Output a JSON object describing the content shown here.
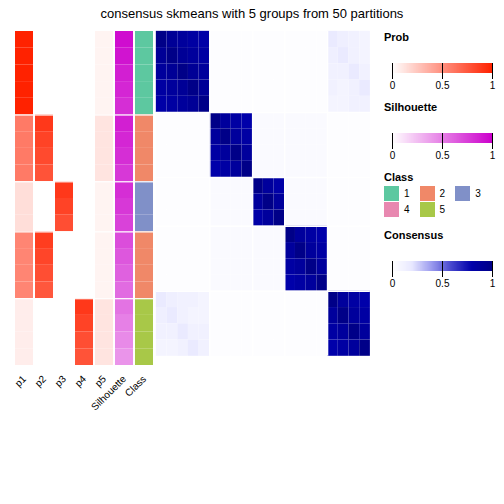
{
  "chart_data": {
    "type": "heatmap",
    "title": "consensus skmeans with 5 groups from 50 partitions",
    "group_boundaries": [
      0,
      5,
      9,
      12,
      16,
      20
    ],
    "annotations": [
      {
        "name": "p1",
        "key": "Prob",
        "values": [
          1.0,
          1.0,
          1.0,
          1.0,
          1.0,
          0.6,
          0.6,
          0.6,
          0.6,
          0.15,
          0.15,
          0.15,
          0.55,
          0.55,
          0.55,
          0.55,
          0.08,
          0.08,
          0.08,
          0.08
        ]
      },
      {
        "name": "p2",
        "key": "Prob",
        "values": [
          0.0,
          0.0,
          0.0,
          0.0,
          0.0,
          0.9,
          0.85,
          0.82,
          0.78,
          0.0,
          0.0,
          0.0,
          0.88,
          0.84,
          0.8,
          0.76,
          0.0,
          0.0,
          0.0,
          0.0
        ]
      },
      {
        "name": "p3",
        "key": "Prob",
        "values": [
          0.0,
          0.0,
          0.0,
          0.0,
          0.0,
          0.0,
          0.0,
          0.0,
          0.0,
          0.9,
          0.85,
          0.8,
          0.0,
          0.0,
          0.0,
          0.0,
          0.0,
          0.0,
          0.0,
          0.0
        ]
      },
      {
        "name": "p4",
        "key": "Prob",
        "values": [
          0.0,
          0.0,
          0.0,
          0.0,
          0.0,
          0.0,
          0.0,
          0.0,
          0.0,
          0.0,
          0.0,
          0.0,
          0.0,
          0.0,
          0.0,
          0.0,
          0.9,
          0.85,
          0.8,
          0.78
        ]
      },
      {
        "name": "p5",
        "key": "Prob",
        "values": [
          0.05,
          0.05,
          0.05,
          0.05,
          0.05,
          0.12,
          0.12,
          0.12,
          0.12,
          0.05,
          0.05,
          0.05,
          0.05,
          0.05,
          0.05,
          0.05,
          0.12,
          0.12,
          0.12,
          0.12
        ]
      },
      {
        "name": "Silhouette",
        "key": "Silhouette",
        "values": [
          0.95,
          0.92,
          0.88,
          0.85,
          0.82,
          0.88,
          0.85,
          0.82,
          0.78,
          0.82,
          0.78,
          0.74,
          0.7,
          0.66,
          0.62,
          0.58,
          0.55,
          0.5,
          0.46,
          0.42
        ]
      },
      {
        "name": "Class",
        "key": "Class",
        "values": [
          1,
          1,
          1,
          1,
          1,
          2,
          2,
          2,
          2,
          3,
          3,
          3,
          2,
          2,
          2,
          2,
          5,
          5,
          5,
          5
        ]
      }
    ],
    "cells_key": "Consensus",
    "cells": [
      [
        1.0,
        0.92,
        0.88,
        0.85,
        0.82,
        0.02,
        0.02,
        0.02,
        0.02,
        0.02,
        0.02,
        0.02,
        0.02,
        0.02,
        0.02,
        0.02,
        0.18,
        0.14,
        0.12,
        0.1
      ],
      [
        0.92,
        1.0,
        0.92,
        0.88,
        0.85,
        0.02,
        0.02,
        0.02,
        0.02,
        0.02,
        0.02,
        0.02,
        0.02,
        0.02,
        0.02,
        0.02,
        0.14,
        0.18,
        0.12,
        0.1
      ],
      [
        0.88,
        0.92,
        1.0,
        0.92,
        0.88,
        0.02,
        0.02,
        0.02,
        0.02,
        0.02,
        0.02,
        0.02,
        0.02,
        0.02,
        0.02,
        0.02,
        0.12,
        0.12,
        0.18,
        0.12
      ],
      [
        0.85,
        0.88,
        0.92,
        1.0,
        0.92,
        0.02,
        0.02,
        0.02,
        0.02,
        0.02,
        0.02,
        0.02,
        0.02,
        0.02,
        0.02,
        0.02,
        0.12,
        0.1,
        0.12,
        0.18
      ],
      [
        0.82,
        0.85,
        0.88,
        0.92,
        1.0,
        0.02,
        0.02,
        0.02,
        0.02,
        0.02,
        0.02,
        0.02,
        0.02,
        0.02,
        0.02,
        0.02,
        0.1,
        0.1,
        0.12,
        0.12
      ],
      [
        0.02,
        0.02,
        0.02,
        0.02,
        0.02,
        1.0,
        0.88,
        0.84,
        0.8,
        0.04,
        0.04,
        0.04,
        0.04,
        0.04,
        0.04,
        0.04,
        0.02,
        0.02,
        0.02,
        0.02
      ],
      [
        0.02,
        0.02,
        0.02,
        0.02,
        0.02,
        0.88,
        1.0,
        0.88,
        0.84,
        0.04,
        0.04,
        0.04,
        0.04,
        0.04,
        0.04,
        0.04,
        0.02,
        0.02,
        0.02,
        0.02
      ],
      [
        0.02,
        0.02,
        0.02,
        0.02,
        0.02,
        0.84,
        0.88,
        1.0,
        0.88,
        0.04,
        0.04,
        0.04,
        0.04,
        0.04,
        0.04,
        0.04,
        0.02,
        0.02,
        0.02,
        0.02
      ],
      [
        0.02,
        0.02,
        0.02,
        0.02,
        0.02,
        0.8,
        0.84,
        0.88,
        1.0,
        0.04,
        0.04,
        0.04,
        0.04,
        0.04,
        0.04,
        0.04,
        0.02,
        0.02,
        0.02,
        0.02
      ],
      [
        0.02,
        0.02,
        0.02,
        0.02,
        0.02,
        0.04,
        0.04,
        0.04,
        0.04,
        1.0,
        0.88,
        0.82,
        0.04,
        0.04,
        0.04,
        0.04,
        0.02,
        0.02,
        0.02,
        0.02
      ],
      [
        0.02,
        0.02,
        0.02,
        0.02,
        0.02,
        0.04,
        0.04,
        0.04,
        0.04,
        0.88,
        1.0,
        0.88,
        0.04,
        0.04,
        0.04,
        0.04,
        0.02,
        0.02,
        0.02,
        0.02
      ],
      [
        0.02,
        0.02,
        0.02,
        0.02,
        0.02,
        0.04,
        0.04,
        0.04,
        0.04,
        0.82,
        0.88,
        1.0,
        0.04,
        0.04,
        0.04,
        0.04,
        0.02,
        0.02,
        0.02,
        0.02
      ],
      [
        0.02,
        0.02,
        0.02,
        0.02,
        0.02,
        0.04,
        0.04,
        0.04,
        0.04,
        0.04,
        0.04,
        0.04,
        1.0,
        0.88,
        0.84,
        0.8,
        0.02,
        0.02,
        0.02,
        0.02
      ],
      [
        0.02,
        0.02,
        0.02,
        0.02,
        0.02,
        0.04,
        0.04,
        0.04,
        0.04,
        0.04,
        0.04,
        0.04,
        0.88,
        1.0,
        0.88,
        0.84,
        0.02,
        0.02,
        0.02,
        0.02
      ],
      [
        0.02,
        0.02,
        0.02,
        0.02,
        0.02,
        0.04,
        0.04,
        0.04,
        0.04,
        0.04,
        0.04,
        0.04,
        0.84,
        0.88,
        1.0,
        0.88,
        0.02,
        0.02,
        0.02,
        0.02
      ],
      [
        0.02,
        0.02,
        0.02,
        0.02,
        0.02,
        0.04,
        0.04,
        0.04,
        0.04,
        0.04,
        0.04,
        0.04,
        0.8,
        0.84,
        0.88,
        1.0,
        0.02,
        0.02,
        0.02,
        0.02
      ],
      [
        0.18,
        0.14,
        0.12,
        0.12,
        0.1,
        0.02,
        0.02,
        0.02,
        0.02,
        0.02,
        0.02,
        0.02,
        0.02,
        0.02,
        0.02,
        0.02,
        1.0,
        0.88,
        0.84,
        0.8
      ],
      [
        0.14,
        0.18,
        0.12,
        0.1,
        0.1,
        0.02,
        0.02,
        0.02,
        0.02,
        0.02,
        0.02,
        0.02,
        0.02,
        0.02,
        0.02,
        0.02,
        0.88,
        1.0,
        0.88,
        0.84
      ],
      [
        0.12,
        0.12,
        0.18,
        0.12,
        0.12,
        0.02,
        0.02,
        0.02,
        0.02,
        0.02,
        0.02,
        0.02,
        0.02,
        0.02,
        0.02,
        0.02,
        0.84,
        0.88,
        1.0,
        0.88
      ],
      [
        0.1,
        0.1,
        0.12,
        0.18,
        0.12,
        0.02,
        0.02,
        0.02,
        0.02,
        0.02,
        0.02,
        0.02,
        0.02,
        0.02,
        0.02,
        0.02,
        0.8,
        0.84,
        0.88,
        1.0
      ]
    ],
    "keys": [
      {
        "title": "Prob",
        "colors": [
          "#ffffff",
          "#ff2200"
        ],
        "range": [
          0,
          1
        ],
        "ticks": [
          0,
          0.5,
          1
        ]
      },
      {
        "title": "Silhouette",
        "colors": [
          "#ffffff",
          "#cc00cc"
        ],
        "range": [
          0,
          1
        ],
        "ticks": [
          0,
          0.5,
          1
        ]
      },
      {
        "title": "Class",
        "categories": [
          "1",
          "2",
          "3",
          "4",
          "5"
        ],
        "colors": [
          "#5dc8a0",
          "#f08868",
          "#8090c8",
          "#e888b0",
          "#a8c848"
        ]
      },
      {
        "title": "Consensus",
        "colors": [
          "#ffffff",
          "#e8e8ff",
          "#9999ee",
          "#4444cc",
          "#0000aa",
          "#000088"
        ],
        "range": [
          0,
          1
        ],
        "ticks": [
          0,
          0.5,
          1
        ]
      }
    ]
  }
}
